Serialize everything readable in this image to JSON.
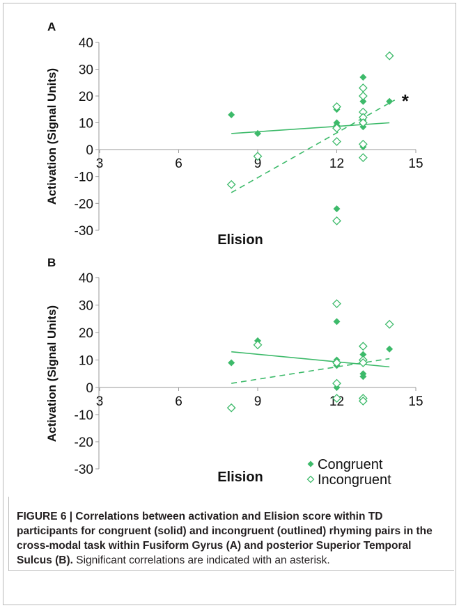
{
  "chart_data": [
    {
      "type": "scatter",
      "panel_label": "A",
      "xlabel": "Elision",
      "ylabel": "Activation (Signal Units)",
      "xlim": [
        3,
        15
      ],
      "ylim": [
        -30,
        40
      ],
      "xticks": [
        "3",
        "6",
        "9",
        "12",
        "15"
      ],
      "yticks": [
        "40",
        "30",
        "20",
        "10",
        "0",
        "-10",
        "-20",
        "-30"
      ],
      "series": [
        {
          "name": "Congruent",
          "marker": "filled-diamond",
          "points": [
            [
              8,
              13
            ],
            [
              9,
              6
            ],
            [
              12,
              15
            ],
            [
              12,
              10
            ],
            [
              12,
              9
            ],
            [
              12,
              -22
            ],
            [
              13,
              27
            ],
            [
              13,
              18
            ],
            [
              13,
              12
            ],
            [
              13,
              11
            ],
            [
              13,
              8.5
            ],
            [
              13,
              2
            ],
            [
              13,
              1
            ],
            [
              14,
              18
            ]
          ],
          "trend": [
            [
              8,
              6
            ],
            [
              14,
              10
            ]
          ],
          "trend_style": "solid"
        },
        {
          "name": "Incongruent",
          "marker": "outlined-diamond",
          "points": [
            [
              8,
              -13
            ],
            [
              9,
              -2.5
            ],
            [
              12,
              16
            ],
            [
              12,
              8
            ],
            [
              12,
              3
            ],
            [
              12,
              -26.5
            ],
            [
              13,
              23
            ],
            [
              13,
              20
            ],
            [
              13,
              14
            ],
            [
              13,
              12
            ],
            [
              13,
              10
            ],
            [
              13,
              2
            ],
            [
              13,
              -3
            ],
            [
              14,
              35
            ]
          ],
          "trend": [
            [
              8,
              -16
            ],
            [
              14.2,
              18.5
            ]
          ],
          "trend_style": "dashed"
        }
      ],
      "annotation": "*"
    },
    {
      "type": "scatter",
      "panel_label": "B",
      "xlabel": "Elision",
      "ylabel": "Activation (Signal Units)",
      "xlim": [
        3,
        15
      ],
      "ylim": [
        -30,
        40
      ],
      "xticks": [
        "3",
        "6",
        "9",
        "12",
        "15"
      ],
      "yticks": [
        "40",
        "30",
        "20",
        "10",
        "0",
        "-10",
        "-20",
        "-30"
      ],
      "series": [
        {
          "name": "Congruent",
          "marker": "filled-diamond",
          "points": [
            [
              8,
              9
            ],
            [
              9,
              17
            ],
            [
              12,
              24
            ],
            [
              12,
              10
            ],
            [
              12,
              8
            ],
            [
              12,
              0
            ],
            [
              13,
              12
            ],
            [
              13,
              9
            ],
            [
              13,
              5
            ],
            [
              13,
              4
            ],
            [
              13,
              -4
            ],
            [
              14,
              14
            ]
          ],
          "trend": [
            [
              8,
              13
            ],
            [
              14,
              7.5
            ]
          ],
          "trend_style": "solid"
        },
        {
          "name": "Incongruent",
          "marker": "outlined-diamond",
          "points": [
            [
              8,
              -7.5
            ],
            [
              9,
              15.5
            ],
            [
              12,
              30.5
            ],
            [
              12,
              9
            ],
            [
              12,
              1.5
            ],
            [
              12,
              -4
            ],
            [
              13,
              15
            ],
            [
              13,
              10
            ],
            [
              13,
              9
            ],
            [
              13,
              -4
            ],
            [
              13,
              -5
            ],
            [
              14,
              23
            ]
          ],
          "trend": [
            [
              8,
              1.5
            ],
            [
              14,
              10.5
            ]
          ],
          "trend_style": "dashed"
        }
      ],
      "legend": {
        "placement": "bottom-right",
        "entries": [
          "Congruent",
          "Incongruent"
        ]
      }
    }
  ],
  "colors": {
    "marker": "#3dba6a",
    "trend": "#3dba6a",
    "axis": "#9a9a9a",
    "text": "#111111"
  },
  "caption": {
    "bold": "FIGURE 6 | Correlations between activation and Elision score within TD participants for congruent (solid) and incongruent (outlined) rhyming pairs in the cross-modal task within Fusiform Gyrus (A) and posterior Superior Temporal Sulcus (B).",
    "normal": " Significant correlations are indicated with an asterisk."
  }
}
